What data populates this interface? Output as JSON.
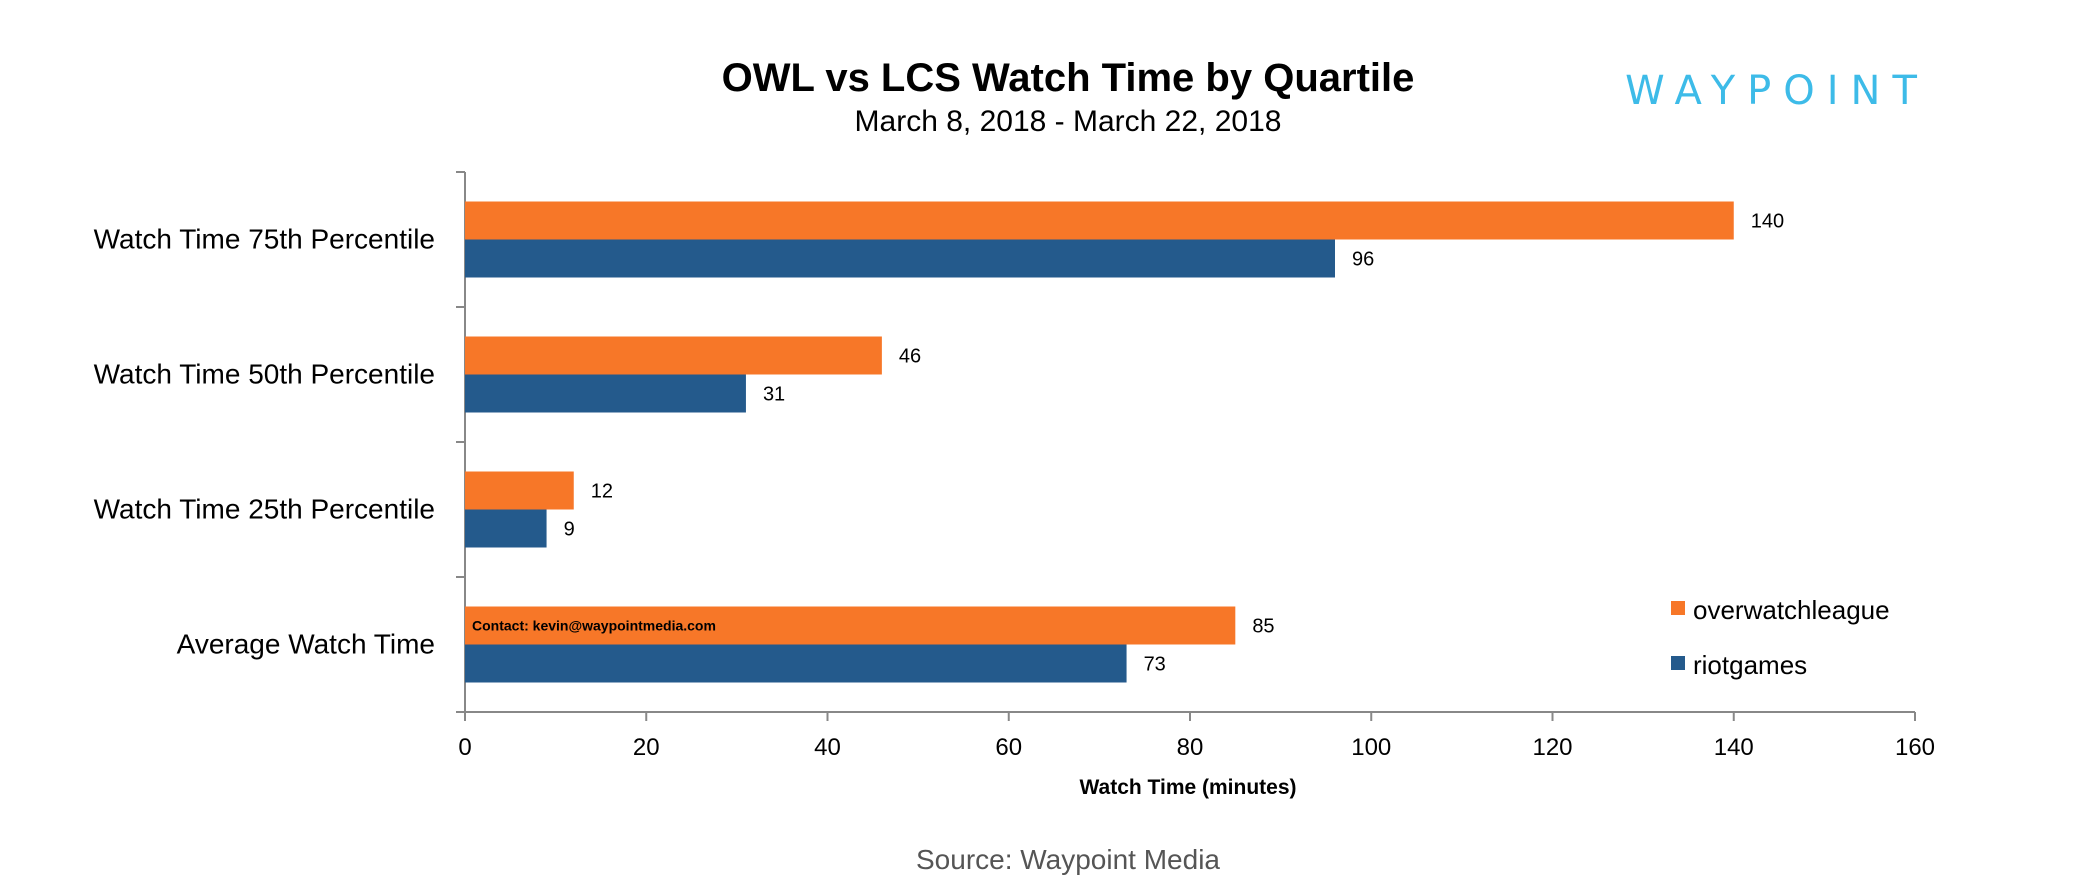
{
  "chart_data": {
    "type": "bar",
    "orientation": "horizontal",
    "title": "OWL vs LCS Watch Time by Quartile",
    "subtitle": "March 8, 2018 - March 22, 2018",
    "xlabel": "Watch Time (minutes)",
    "ylabel": "",
    "xlim": [
      0,
      160
    ],
    "xticks": [
      0,
      20,
      40,
      60,
      80,
      100,
      120,
      140,
      160
    ],
    "categories": [
      "Watch Time 75th Percentile",
      "Watch Time 50th Percentile",
      "Watch Time 25th Percentile",
      "Average Watch Time"
    ],
    "series": [
      {
        "name": "overwatchleague",
        "color": "#F77728",
        "values": [
          140,
          46,
          12,
          85
        ]
      },
      {
        "name": "riotgames",
        "color": "#245A8C",
        "values": [
          96,
          31,
          9,
          73
        ]
      }
    ],
    "legend_position": "bottom-right",
    "grid": false
  },
  "branding": {
    "logo_text": "WAYPOINT",
    "logo_color": "#3DBBE8",
    "contact": "Contact: kevin@waypointmedia.com",
    "source": "Source: Waypoint Media",
    "source_color": "#555555"
  }
}
